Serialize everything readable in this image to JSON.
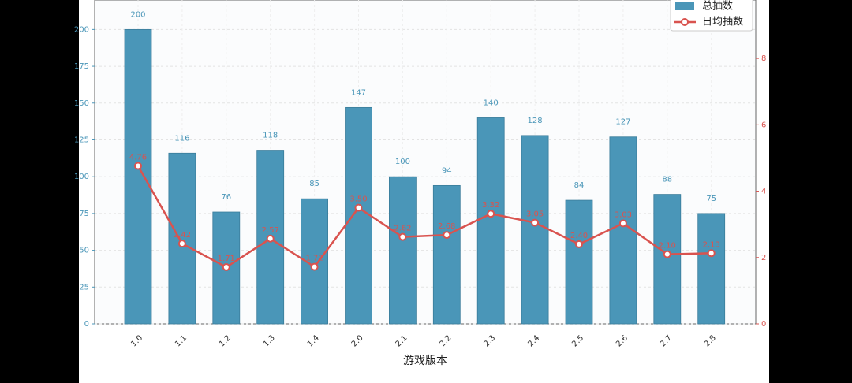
{
  "chart_data": {
    "type": "bar-line",
    "x_label": "游戏版本",
    "categories": [
      "1.0",
      "1.1",
      "1.2",
      "1.3",
      "1.4",
      "2.0",
      "2.1",
      "2.2",
      "2.3",
      "2.4",
      "2.5",
      "2.6",
      "2.7",
      "2.8"
    ],
    "series": [
      {
        "name": "总抽数",
        "type": "bar",
        "color": "#4a96b8",
        "values": [
          200,
          116,
          76,
          118,
          85,
          147,
          100,
          94,
          140,
          128,
          84,
          127,
          88,
          75
        ]
      },
      {
        "name": "日均抽数",
        "type": "line",
        "axis": "y2",
        "color": "#d9534f",
        "values": [
          4.76,
          2.42,
          1.71,
          2.57,
          1.72,
          3.5,
          2.62,
          2.68,
          3.32,
          3.05,
          2.4,
          3.03,
          2.1,
          2.13
        ],
        "value_labels": [
          "4.76",
          "2.42",
          "1.71",
          "2.57",
          "1.72",
          "3.50",
          "2.62",
          "2.68",
          "3.32",
          "3.05",
          "2.40",
          "3.03",
          "2.10",
          "2.13"
        ]
      }
    ],
    "ylim": [
      0,
      220
    ],
    "yticks": [
      0,
      25,
      50,
      75,
      100,
      125,
      150,
      175,
      200
    ],
    "y2lim": [
      0,
      9.76
    ],
    "y2ticks": [
      0,
      2,
      4,
      6,
      8
    ],
    "grid": true,
    "legend": "upper right"
  }
}
